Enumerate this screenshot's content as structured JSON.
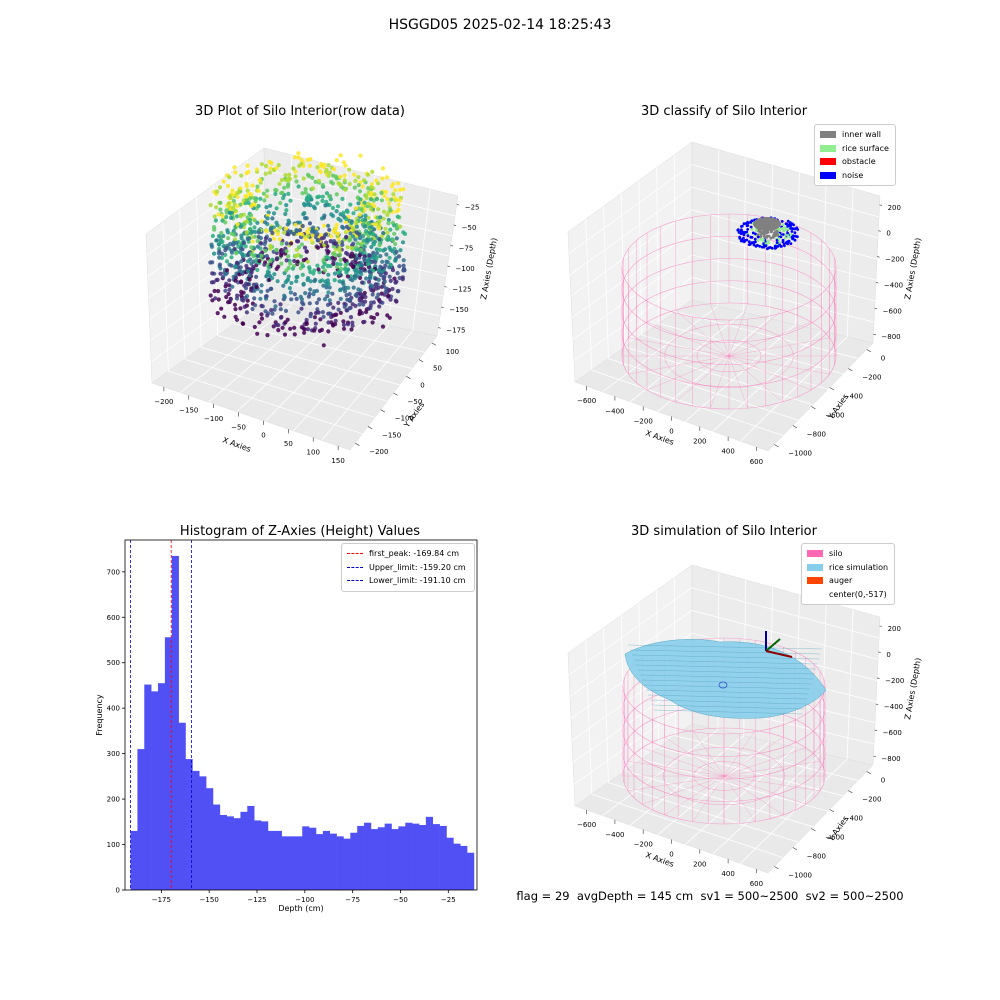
{
  "figure": {
    "suptitle": "HSGGD05 2025-02-14 18:25:43",
    "footer": "flag = 29  avgDepth = 145 cm  sv1 = 500~2500  sv2 = 500~2500"
  },
  "chart_data": [
    {
      "type": "scatter",
      "subtype": "3d",
      "title": "3D Plot of Silo Interior(row data)",
      "xlabel": "X Axies",
      "ylabel": "Y Axies",
      "zlabel": "Z Axies (Depth)",
      "x_ticks": [
        "−200",
        "−150",
        "−100",
        "−50",
        "0",
        "50",
        "100",
        "150"
      ],
      "y_ticks": [
        "100",
        "50",
        "0",
        "−50",
        "−100",
        "−150",
        "−200"
      ],
      "z_ticks": [
        "−25",
        "−50",
        "−75",
        "−100",
        "−125",
        "−150",
        "−175"
      ],
      "xlim": [
        -220,
        180
      ],
      "ylim": [
        -210,
        110
      ],
      "zlim": [
        -195,
        -10
      ],
      "colormap": "viridis",
      "grid": true
    },
    {
      "type": "scatter",
      "subtype": "3d",
      "title": "3D classify of Silo Interior",
      "xlabel": "X Axies",
      "ylabel": "Y Axies",
      "zlabel": "Z Axies (Depth)",
      "x_ticks": [
        "−600",
        "−400",
        "−200",
        "0",
        "200",
        "400",
        "600"
      ],
      "y_ticks": [
        "0",
        "−200",
        "−400",
        "−600",
        "−800",
        "−1000"
      ],
      "z_ticks": [
        "200",
        "0",
        "−200",
        "−400",
        "−600",
        "−800"
      ],
      "legend": {
        "placement": "top-right",
        "items": [
          {
            "label": "inner wall",
            "color": "#808080"
          },
          {
            "label": "rice surface",
            "color": "#90ee90"
          },
          {
            "label": "obstacle",
            "color": "#ff0000"
          },
          {
            "label": "noise",
            "color": "#0000ff"
          }
        ]
      },
      "wireframe_color": "#ff69b4",
      "grid": true
    },
    {
      "type": "bar",
      "subtype": "histogram",
      "title": "Histogram of Z-Axies (Height) Values",
      "xlabel": "Depth (cm)",
      "ylabel": "Frequency",
      "xlim": [
        -194,
        -10
      ],
      "ylim": [
        0,
        770
      ],
      "bin_start": -191.1,
      "bin_width": 3.59,
      "values": [
        130,
        310,
        452,
        437,
        455,
        556,
        735,
        368,
        288,
        262,
        250,
        224,
        188,
        165,
        162,
        158,
        172,
        185,
        153,
        151,
        130,
        130,
        118,
        118,
        118,
        140,
        137,
        123,
        130,
        124,
        118,
        113,
        126,
        141,
        148,
        134,
        138,
        146,
        134,
        140,
        148,
        146,
        143,
        161,
        145,
        141,
        115,
        102,
        97,
        82
      ],
      "x_ticks": [
        -175,
        -150,
        -125,
        -100,
        -75,
        -50,
        -25
      ],
      "y_ticks": [
        0,
        100,
        200,
        300,
        400,
        500,
        600,
        700
      ],
      "bar_color": "#5050f5",
      "vlines": [
        {
          "label": "first_peak: -169.84 cm",
          "value": -169.84,
          "color": "#ff0000"
        },
        {
          "label": "Upper_limit: -159.20 cm",
          "value": -159.2,
          "color": "#0000cc"
        },
        {
          "label": "Lower_limit: -191.10 cm",
          "value": -191.1,
          "color": "#0000cc"
        }
      ],
      "legend": {
        "placement": "top-right"
      }
    },
    {
      "type": "scatter",
      "subtype": "3d-surface",
      "title": "3D simulation of Silo Interior",
      "xlabel": "X Axies",
      "ylabel": "Y Axies",
      "zlabel": "Z Axies (Depth)",
      "x_ticks": [
        "−600",
        "−400",
        "−200",
        "0",
        "200",
        "400",
        "600"
      ],
      "y_ticks": [
        "0",
        "−200",
        "−400",
        "−600",
        "−800",
        "−1000"
      ],
      "z_ticks": [
        "200",
        "0",
        "−200",
        "−400",
        "−600",
        "−800"
      ],
      "legend": {
        "placement": "top-right",
        "items": [
          {
            "label": "silo",
            "color": "#ff69b4"
          },
          {
            "label": "rice simulation",
            "color": "#87ceeb"
          },
          {
            "label": "auger",
            "color": "#ff4500"
          },
          {
            "label": "center(0,-517)",
            "color": "#ffffff"
          }
        ]
      },
      "grid": true
    }
  ]
}
